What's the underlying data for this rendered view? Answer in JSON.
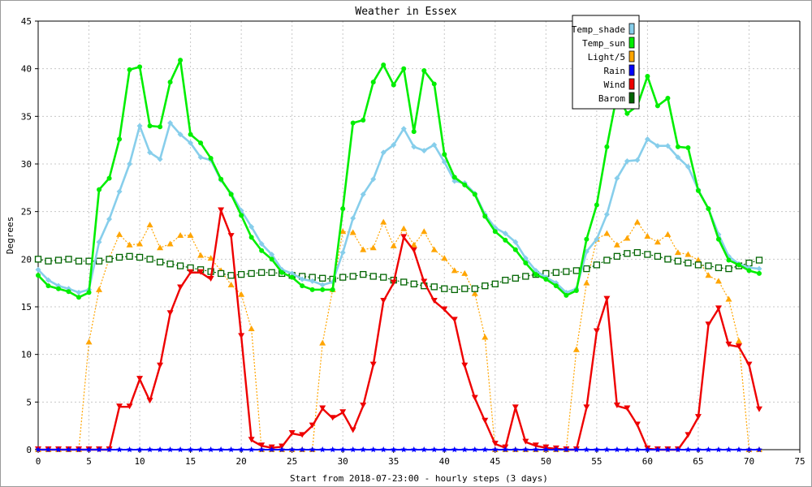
{
  "chart_data": {
    "type": "line",
    "title": "Weather in Essex",
    "xlabel": "Start from 2018-07-23:00 - hourly steps (3 days)",
    "ylabel": "Degrees",
    "xlim": [
      0,
      75
    ],
    "ylim": [
      0,
      45
    ],
    "x_ticks": [
      0,
      5,
      10,
      15,
      20,
      25,
      30,
      35,
      40,
      45,
      50,
      55,
      60,
      65,
      70,
      75
    ],
    "y_ticks": [
      0,
      5,
      10,
      15,
      20,
      25,
      30,
      35,
      40,
      45
    ],
    "grid": true,
    "legend_position": "top-right",
    "series": [
      {
        "name": "Temp_shade",
        "color": "#87ceeb",
        "marker": "diamond",
        "values": [
          18.9,
          17.8,
          17.2,
          16.9,
          16.5,
          16.8,
          21.8,
          24.2,
          27.1,
          30.0,
          34.0,
          31.2,
          30.5,
          34.3,
          33.1,
          32.2,
          30.7,
          30.4,
          28.3,
          26.9,
          25.1,
          23.4,
          21.6,
          20.5,
          18.9,
          18.5,
          17.9,
          17.7,
          17.3,
          17.6,
          20.7,
          24.3,
          26.8,
          28.4,
          31.2,
          32.0,
          33.7,
          31.8,
          31.4,
          32.0,
          30.2,
          28.2,
          28.0,
          26.9,
          24.7,
          23.3,
          22.7,
          21.8,
          20.1,
          18.8,
          18.1,
          17.5,
          16.5,
          16.9,
          20.8,
          22.1,
          24.7,
          28.5,
          30.3,
          30.4,
          32.6,
          31.9,
          31.9,
          30.7,
          29.7,
          27.3,
          25.3,
          22.6,
          20.3,
          19.5,
          19.1,
          19.0
        ]
      },
      {
        "name": "Temp_sun",
        "color": "#00ee00",
        "marker": "circle",
        "values": [
          18.3,
          17.2,
          16.9,
          16.6,
          16.0,
          16.5,
          27.3,
          28.5,
          32.6,
          39.9,
          40.2,
          34.0,
          33.9,
          38.6,
          40.9,
          33.1,
          32.2,
          30.6,
          28.4,
          26.8,
          24.6,
          22.3,
          20.9,
          20.0,
          18.6,
          18.1,
          17.2,
          16.8,
          16.8,
          16.8,
          25.3,
          34.3,
          34.6,
          38.6,
          40.4,
          38.3,
          40.0,
          33.4,
          39.8,
          38.4,
          31.0,
          28.6,
          27.8,
          26.8,
          24.5,
          22.9,
          22.0,
          21.0,
          19.6,
          18.4,
          17.9,
          17.2,
          16.2,
          16.7,
          22.1,
          25.7,
          31.8,
          37.3,
          35.3,
          36.1,
          39.2,
          36.1,
          36.9,
          31.8,
          31.7,
          27.2,
          25.3,
          22.1,
          19.9,
          19.4,
          18.8,
          18.5
        ]
      },
      {
        "name": "Light/5",
        "color": "#ffa500",
        "marker": "triangle-up",
        "values": [
          0,
          0,
          0,
          0,
          0,
          11.3,
          16.8,
          20.1,
          22.6,
          21.5,
          21.6,
          23.6,
          21.2,
          21.6,
          22.5,
          22.5,
          20.4,
          20.1,
          18.8,
          17.3,
          16.3,
          12.7,
          0,
          0,
          0,
          0,
          0,
          0,
          11.2,
          16.8,
          22.9,
          22.8,
          21.0,
          21.2,
          23.9,
          21.4,
          23.2,
          21.5,
          22.9,
          21.0,
          20.1,
          18.8,
          18.5,
          16.4,
          11.8,
          0,
          0,
          0,
          0,
          0,
          0,
          0,
          0,
          10.5,
          17.5,
          22.1,
          22.7,
          21.5,
          22.2,
          23.9,
          22.4,
          21.8,
          22.6,
          20.7,
          20.5,
          19.9,
          18.3,
          17.7,
          15.8,
          11.4,
          0,
          0
        ]
      },
      {
        "name": "Rain",
        "color": "#0000ff",
        "marker": "star",
        "values": [
          0,
          0,
          0,
          0,
          0,
          0,
          0,
          0,
          0,
          0,
          0,
          0,
          0,
          0,
          0,
          0,
          0,
          0,
          0,
          0,
          0,
          0,
          0,
          0,
          0,
          0,
          0,
          0,
          0,
          0,
          0,
          0,
          0,
          0,
          0,
          0,
          0,
          0,
          0,
          0,
          0,
          0,
          0,
          0,
          0,
          0,
          0,
          0,
          0,
          0,
          0,
          0,
          0,
          0,
          0,
          0,
          0,
          0,
          0,
          0,
          0,
          0,
          0,
          0,
          0,
          0,
          0,
          0,
          0,
          0,
          0,
          0
        ]
      },
      {
        "name": "Wind",
        "color": "#ee0000",
        "marker": "triangle-down",
        "values": [
          0,
          0,
          0,
          0,
          0,
          0,
          0,
          0,
          4.5,
          4.5,
          7.4,
          5.1,
          8.8,
          14.3,
          17.0,
          18.6,
          18.6,
          17.9,
          25.1,
          22.4,
          11.9,
          1.0,
          0.4,
          0.2,
          0.3,
          1.7,
          1.5,
          2.5,
          4.3,
          3.3,
          3.9,
          2.0,
          4.6,
          8.9,
          15.6,
          17.5,
          22.3,
          20.9,
          17.6,
          15.6,
          14.7,
          13.6,
          8.8,
          5.4,
          3.0,
          0.6,
          0.2,
          4.4,
          0.8,
          0.4,
          0.2,
          0.1,
          0,
          0,
          4.4,
          12.4,
          15.8,
          4.6,
          4.3,
          2.6,
          0.1,
          0,
          0,
          0,
          1.5,
          3.4,
          13.1,
          14.8,
          11.0,
          10.8,
          8.9,
          4.2
        ]
      },
      {
        "name": "Barom",
        "color": "#006400",
        "marker": "square",
        "values": [
          20.0,
          19.8,
          19.9,
          20.0,
          19.8,
          19.8,
          19.8,
          20.0,
          20.2,
          20.3,
          20.2,
          20.0,
          19.7,
          19.5,
          19.3,
          19.1,
          18.9,
          18.7,
          18.5,
          18.3,
          18.4,
          18.5,
          18.6,
          18.6,
          18.5,
          18.3,
          18.2,
          18.1,
          18.0,
          17.9,
          18.1,
          18.2,
          18.4,
          18.2,
          18.1,
          17.8,
          17.6,
          17.4,
          17.2,
          17.1,
          16.9,
          16.8,
          16.9,
          16.9,
          17.2,
          17.4,
          17.8,
          18.0,
          18.2,
          18.4,
          18.5,
          18.6,
          18.7,
          18.8,
          19.0,
          19.4,
          19.9,
          20.3,
          20.6,
          20.7,
          20.5,
          20.3,
          20.0,
          19.8,
          19.6,
          19.4,
          19.3,
          19.1,
          19.0,
          19.3,
          19.6,
          19.9
        ]
      }
    ]
  }
}
